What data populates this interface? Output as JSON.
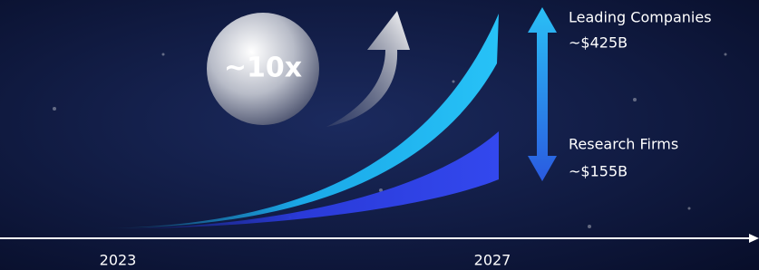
{
  "badge": {
    "label": "~10x"
  },
  "series": [
    {
      "name": "Leading Companies",
      "value_label": "~$425B"
    },
    {
      "name": "Research Firms",
      "value_label": "~$155B"
    }
  ],
  "axis": {
    "start": "2023",
    "end": "2027"
  }
}
